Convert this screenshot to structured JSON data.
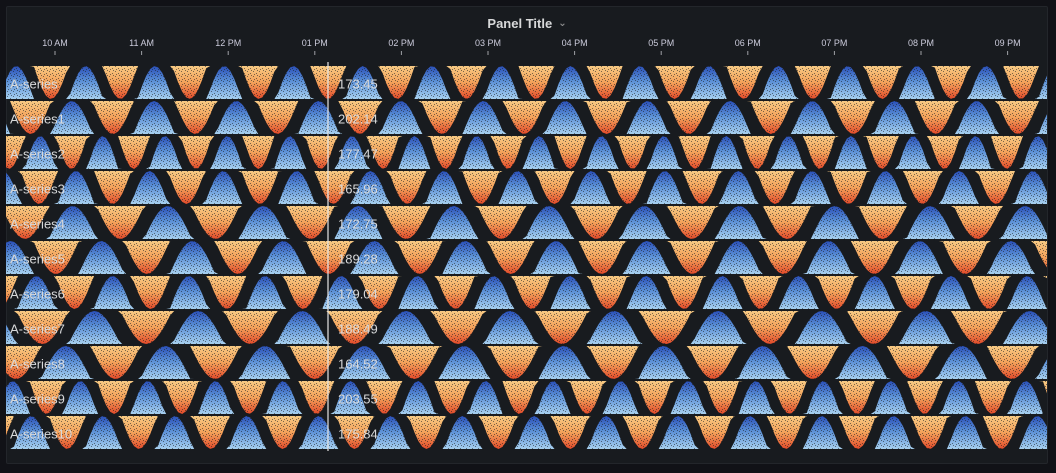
{
  "panel": {
    "title": "Panel Title"
  },
  "colors": {
    "up_top": "#2a4fb8",
    "up_mid": "#5a8fd6",
    "up_bottom": "#a6cfee",
    "down_top": "#f7c983",
    "down_mid": "#f3a15a",
    "down_bottom": "#e04a2a",
    "background": "#181b1f",
    "cursor": "#e6e6e6"
  },
  "chart_data": {
    "type": "heatmap",
    "x_ticks": [
      "10 AM",
      "11 AM",
      "12 PM",
      "01 PM",
      "02 PM",
      "03 PM",
      "04 PM",
      "05 PM",
      "06 PM",
      "07 PM",
      "08 PM",
      "09 PM"
    ],
    "cursor_time": "01 PM",
    "series": [
      {
        "name": "A-series",
        "value": "173.45",
        "period": 0.8,
        "phase": 0.1
      },
      {
        "name": "A-series1",
        "value": "202.14",
        "period": 0.95,
        "phase": 0.45
      },
      {
        "name": "A-series2",
        "value": "177.47",
        "period": 0.72,
        "phase": 0.7
      },
      {
        "name": "A-series3",
        "value": "165.96",
        "period": 0.85,
        "phase": 0.3
      },
      {
        "name": "A-series4",
        "value": "172.75",
        "period": 1.1,
        "phase": 0.55
      },
      {
        "name": "A-series5",
        "value": "189.28",
        "period": 1.05,
        "phase": 0.2
      },
      {
        "name": "A-series6",
        "value": "179.04",
        "period": 0.88,
        "phase": 0.85
      },
      {
        "name": "A-series7",
        "value": "188.49",
        "period": 1.2,
        "phase": 0.4
      },
      {
        "name": "A-series8",
        "value": "164.52",
        "period": 1.15,
        "phase": 0.65
      },
      {
        "name": "A-series9",
        "value": "203.55",
        "period": 0.78,
        "phase": 0.15
      },
      {
        "name": "A-series10",
        "value": "175.84",
        "period": 0.83,
        "phase": 0.9
      }
    ]
  }
}
